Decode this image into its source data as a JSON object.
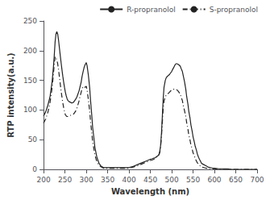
{
  "chart_data": {
    "type": "line",
    "xlabel": "Wavelength (nm)",
    "ylabel": "RTP intensity(a.u.)",
    "xlim": [
      200,
      700
    ],
    "ylim": [
      0,
      250
    ],
    "xticks": [
      200,
      250,
      300,
      350,
      400,
      450,
      500,
      550,
      600,
      650,
      700
    ],
    "yticks": [
      0,
      50,
      100,
      150,
      200,
      250
    ],
    "grid": false,
    "legend": "upper right",
    "x": [
      200,
      205,
      210,
      215,
      220,
      223,
      225,
      227,
      229,
      231,
      233,
      235,
      237,
      239,
      241,
      243,
      245,
      247,
      249,
      251,
      253,
      255,
      257,
      260,
      263,
      265,
      267,
      270,
      272,
      275,
      278,
      280,
      283,
      285,
      288,
      290,
      292,
      295,
      297,
      300,
      302,
      305,
      308,
      310,
      313,
      315,
      318,
      320,
      323,
      325,
      328,
      330,
      333,
      335,
      338,
      340,
      345,
      350,
      355,
      360,
      370,
      380,
      390,
      400,
      410,
      420,
      430,
      440,
      450,
      455,
      458,
      460,
      462,
      464,
      466,
      468,
      470,
      472,
      474,
      476,
      478,
      480,
      482,
      485,
      487,
      490,
      492,
      495,
      497,
      500,
      502,
      505,
      507,
      510,
      512,
      515,
      517,
      520,
      522,
      525,
      527,
      530,
      533,
      535,
      538,
      540,
      543,
      545,
      548,
      550,
      553,
      555,
      558,
      560,
      563,
      565,
      568,
      570,
      575,
      580,
      585,
      590,
      595,
      600,
      610,
      620,
      630,
      640,
      650,
      660,
      670,
      680,
      690,
      700
    ],
    "series": [
      {
        "name": "R-propranolol",
        "color": "#222222",
        "line_style": "solid",
        "values": [
          90,
          97,
          108,
          122,
          148,
          172,
          192,
          215,
          228,
          232,
          228,
          218,
          205,
          192,
          180,
          168,
          157,
          147,
          138,
          130,
          124,
          119,
          116,
          114,
          113,
          112,
          112,
          113,
          115,
          118,
          122,
          126,
          132,
          138,
          147,
          156,
          163,
          172,
          176,
          180,
          174,
          158,
          137,
          116,
          90,
          70,
          52,
          38,
          27,
          20,
          14,
          10,
          7,
          5,
          4,
          3,
          3,
          3,
          3,
          3,
          3,
          3,
          3,
          3,
          5,
          8,
          11,
          14,
          17,
          18,
          19,
          19,
          20,
          21,
          22,
          23,
          25,
          30,
          40,
          60,
          88,
          118,
          138,
          150,
          154,
          157,
          158,
          160,
          162,
          165,
          168,
          172,
          175,
          178,
          178,
          177,
          176,
          174,
          170,
          165,
          158,
          148,
          135,
          123,
          110,
          98,
          86,
          75,
          64,
          55,
          46,
          39,
          32,
          26,
          20,
          17,
          13,
          10,
          8,
          6,
          4,
          3,
          2,
          2,
          1,
          1,
          1,
          0,
          0,
          0,
          0,
          0,
          0,
          0
        ]
      },
      {
        "name": "S-propranolol",
        "color": "#222222",
        "line_style": "dashdot",
        "values": [
          78,
          85,
          96,
          112,
          138,
          160,
          178,
          190,
          188,
          184,
          178,
          168,
          156,
          144,
          132,
          122,
          112,
          104,
          97,
          92,
          90,
          89,
          89,
          90,
          91,
          91,
          92,
          93,
          95,
          98,
          103,
          108,
          115,
          122,
          130,
          136,
          138,
          140,
          138,
          140,
          133,
          117,
          98,
          80,
          60,
          46,
          34,
          25,
          17,
          13,
          9,
          7,
          5,
          4,
          3,
          2,
          2,
          2,
          2,
          2,
          2,
          2,
          2,
          2,
          4,
          6,
          9,
          12,
          15,
          16,
          17,
          18,
          19,
          20,
          21,
          22,
          24,
          28,
          37,
          55,
          78,
          102,
          115,
          122,
          125,
          127,
          128,
          130,
          132,
          133,
          134,
          135,
          135,
          135,
          134,
          132,
          130,
          127,
          122,
          116,
          108,
          99,
          89,
          79,
          68,
          58,
          49,
          41,
          34,
          28,
          23,
          18,
          14,
          11,
          9,
          7,
          5,
          4,
          3,
          2,
          2,
          1,
          1,
          1,
          0,
          0,
          0,
          0,
          0,
          0,
          0,
          0,
          0,
          0
        ]
      }
    ]
  }
}
